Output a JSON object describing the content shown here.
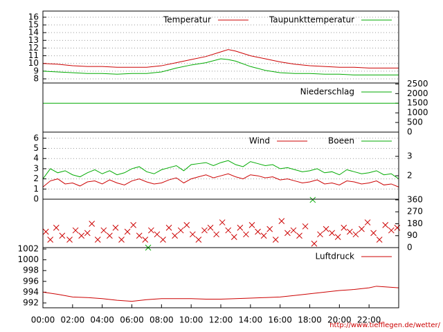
{
  "chart_data": [
    {
      "type": "line",
      "xlim": [
        0,
        24
      ],
      "ylim": [
        7.46,
        16.8
      ],
      "yticks": [
        8,
        9,
        10,
        11,
        12,
        13,
        14,
        15,
        16
      ],
      "grid": true,
      "x": [
        0,
        1,
        2,
        3,
        4,
        5,
        6,
        7,
        8,
        9,
        10,
        11,
        12,
        12.5,
        13,
        14,
        15,
        16,
        17,
        18,
        19,
        20,
        21,
        22,
        23,
        24
      ],
      "series": [
        {
          "name": "Temperatur",
          "color": "#cc0000",
          "values": [
            10.0,
            9.9,
            9.7,
            9.6,
            9.6,
            9.5,
            9.5,
            9.5,
            9.7,
            10.1,
            10.5,
            10.9,
            11.5,
            11.8,
            11.6,
            11.0,
            10.6,
            10.2,
            9.9,
            9.7,
            9.6,
            9.5,
            9.5,
            9.4,
            9.4,
            9.4
          ]
        },
        {
          "name": "Taupunkttemperatur",
          "color": "#00aa00",
          "values": [
            9.0,
            8.9,
            8.8,
            8.7,
            8.7,
            8.6,
            8.7,
            8.7,
            8.9,
            9.4,
            9.8,
            10.1,
            10.6,
            10.5,
            10.3,
            9.6,
            9.1,
            8.8,
            8.7,
            8.7,
            8.6,
            8.6,
            8.5,
            8.5,
            8.5,
            8.5
          ]
        }
      ]
    },
    {
      "type": "line",
      "xlim": [
        0,
        24
      ],
      "y2lim": [
        0,
        2550
      ],
      "y2ticks": [
        0,
        500,
        1000,
        1500,
        2000,
        2500
      ],
      "x": [
        0,
        24
      ],
      "series": [
        {
          "name": "Niederschlag",
          "color": "#00aa00",
          "axis": "y2",
          "values": [
            1500,
            1500
          ]
        }
      ]
    },
    {
      "type": "line",
      "xlim": [
        0,
        24
      ],
      "ylim": [
        0,
        6.6
      ],
      "yticks": [
        0,
        1,
        2,
        3,
        4,
        5,
        6
      ],
      "grid": true,
      "y2lim": [
        0.79,
        4.25
      ],
      "y2ticks": [
        2,
        3
      ],
      "x": [
        0,
        0.5,
        1,
        1.5,
        2,
        2.5,
        3,
        3.5,
        4,
        4.5,
        5,
        5.5,
        6,
        6.5,
        7,
        7.5,
        8,
        8.5,
        9,
        9.5,
        10,
        10.5,
        11,
        11.5,
        12,
        12.5,
        13,
        13.5,
        14,
        14.5,
        15,
        15.5,
        16,
        16.5,
        17,
        17.5,
        18,
        18.5,
        19,
        19.5,
        20,
        20.5,
        21,
        21.5,
        22,
        22.5,
        23,
        23.5,
        24
      ],
      "series": [
        {
          "name": "Wind",
          "color": "#cc0000",
          "values": [
            1.2,
            1.8,
            2.0,
            1.5,
            1.6,
            1.3,
            1.7,
            1.8,
            1.5,
            1.9,
            1.6,
            1.4,
            1.8,
            2.0,
            1.7,
            1.5,
            1.6,
            1.9,
            2.1,
            1.6,
            2.0,
            2.2,
            2.4,
            2.1,
            2.3,
            2.5,
            2.2,
            2.0,
            2.4,
            2.3,
            2.1,
            2.2,
            1.9,
            2.0,
            1.8,
            1.6,
            1.7,
            1.9,
            1.5,
            1.6,
            1.4,
            1.8,
            1.7,
            1.5,
            1.6,
            1.8,
            1.4,
            1.5,
            1.2
          ]
        },
        {
          "name": "Boeen",
          "color": "#00aa00",
          "values": [
            2.0,
            3.0,
            2.6,
            2.8,
            2.4,
            2.2,
            2.6,
            2.9,
            2.5,
            2.8,
            2.4,
            2.6,
            3.0,
            3.2,
            2.7,
            2.5,
            2.9,
            3.1,
            3.3,
            2.8,
            3.4,
            3.5,
            3.6,
            3.3,
            3.6,
            3.8,
            3.4,
            3.2,
            3.7,
            3.5,
            3.3,
            3.4,
            3.0,
            3.1,
            2.9,
            2.7,
            2.8,
            3.0,
            2.6,
            2.7,
            2.4,
            2.9,
            2.7,
            2.5,
            2.6,
            2.8,
            2.4,
            2.5,
            2.0
          ]
        }
      ]
    },
    {
      "type": "scatter",
      "xlim": [
        0,
        24
      ],
      "y2lim": [
        0,
        365
      ],
      "y2ticks": [
        0,
        90,
        180,
        270,
        360
      ],
      "series": [
        {
          "color": "#cc0000",
          "axis": "y2",
          "x": [
            0.2,
            0.5,
            0.9,
            1.3,
            1.8,
            2.2,
            2.6,
            3.0,
            3.3,
            3.7,
            4.1,
            4.5,
            4.9,
            5.3,
            5.7,
            6.1,
            6.5,
            6.9,
            7.3,
            7.7,
            8.1,
            8.5,
            8.9,
            9.3,
            9.7,
            10.1,
            10.5,
            10.9,
            11.3,
            11.7,
            12.1,
            12.5,
            12.9,
            13.3,
            13.7,
            14.1,
            14.5,
            14.9,
            15.3,
            15.7,
            16.1,
            16.5,
            16.9,
            17.3,
            17.7,
            18.3,
            18.7,
            19.1,
            19.5,
            19.9,
            20.3,
            20.7,
            21.1,
            21.5,
            21.9,
            22.3,
            22.7,
            23.1,
            23.5,
            23.9
          ],
          "values": [
            120,
            60,
            150,
            90,
            60,
            130,
            90,
            110,
            180,
            60,
            130,
            90,
            150,
            60,
            120,
            170,
            90,
            60,
            130,
            100,
            60,
            150,
            90,
            130,
            170,
            100,
            60,
            130,
            150,
            100,
            190,
            130,
            80,
            150,
            100,
            170,
            120,
            90,
            140,
            60,
            200,
            110,
            130,
            90,
            160,
            30,
            100,
            140,
            110,
            80,
            150,
            120,
            100,
            140,
            190,
            110,
            60,
            170,
            130,
            150
          ]
        },
        {
          "color": "#00aa00",
          "axis": "y2",
          "x": [
            7.1,
            18.2
          ],
          "values": [
            0,
            360
          ]
        }
      ]
    },
    {
      "type": "line",
      "xlim": [
        0,
        24
      ],
      "ylim": [
        991.1,
        1002.26
      ],
      "yticks": [
        992,
        994,
        996,
        998,
        1000,
        1002
      ],
      "xticks": [
        {
          "value": 0,
          "label": "00:00"
        },
        {
          "value": 2,
          "label": "02:00"
        },
        {
          "value": 4,
          "label": "04:00"
        },
        {
          "value": 6,
          "label": "06:00"
        },
        {
          "value": 8,
          "label": "08:00"
        },
        {
          "value": 10,
          "label": "10:00"
        },
        {
          "value": 12,
          "label": "12:00"
        },
        {
          "value": 14,
          "label": "14:00"
        },
        {
          "value": 16,
          "label": "16:00"
        },
        {
          "value": 18,
          "label": "18:00"
        },
        {
          "value": 20,
          "label": "20:00"
        },
        {
          "value": 22,
          "label": "22:00"
        }
      ],
      "x": [
        0,
        1,
        2,
        3,
        4,
        5,
        6,
        7,
        8,
        9,
        10,
        11,
        12,
        13,
        14,
        15,
        16,
        17,
        18,
        19,
        20,
        21,
        22,
        22.5,
        23,
        24
      ],
      "series": [
        {
          "name": "Luftdruck",
          "color": "#cc0000",
          "values": [
            994.0,
            993.6,
            993.1,
            993.0,
            992.8,
            992.5,
            992.3,
            992.6,
            992.8,
            992.8,
            992.8,
            992.7,
            992.7,
            992.8,
            992.9,
            993.0,
            993.1,
            993.4,
            993.7,
            994.0,
            994.3,
            994.5,
            994.8,
            995.1,
            995.0,
            994.8
          ]
        }
      ]
    }
  ],
  "url": "http://www.tiefflegen.de/wetter/"
}
